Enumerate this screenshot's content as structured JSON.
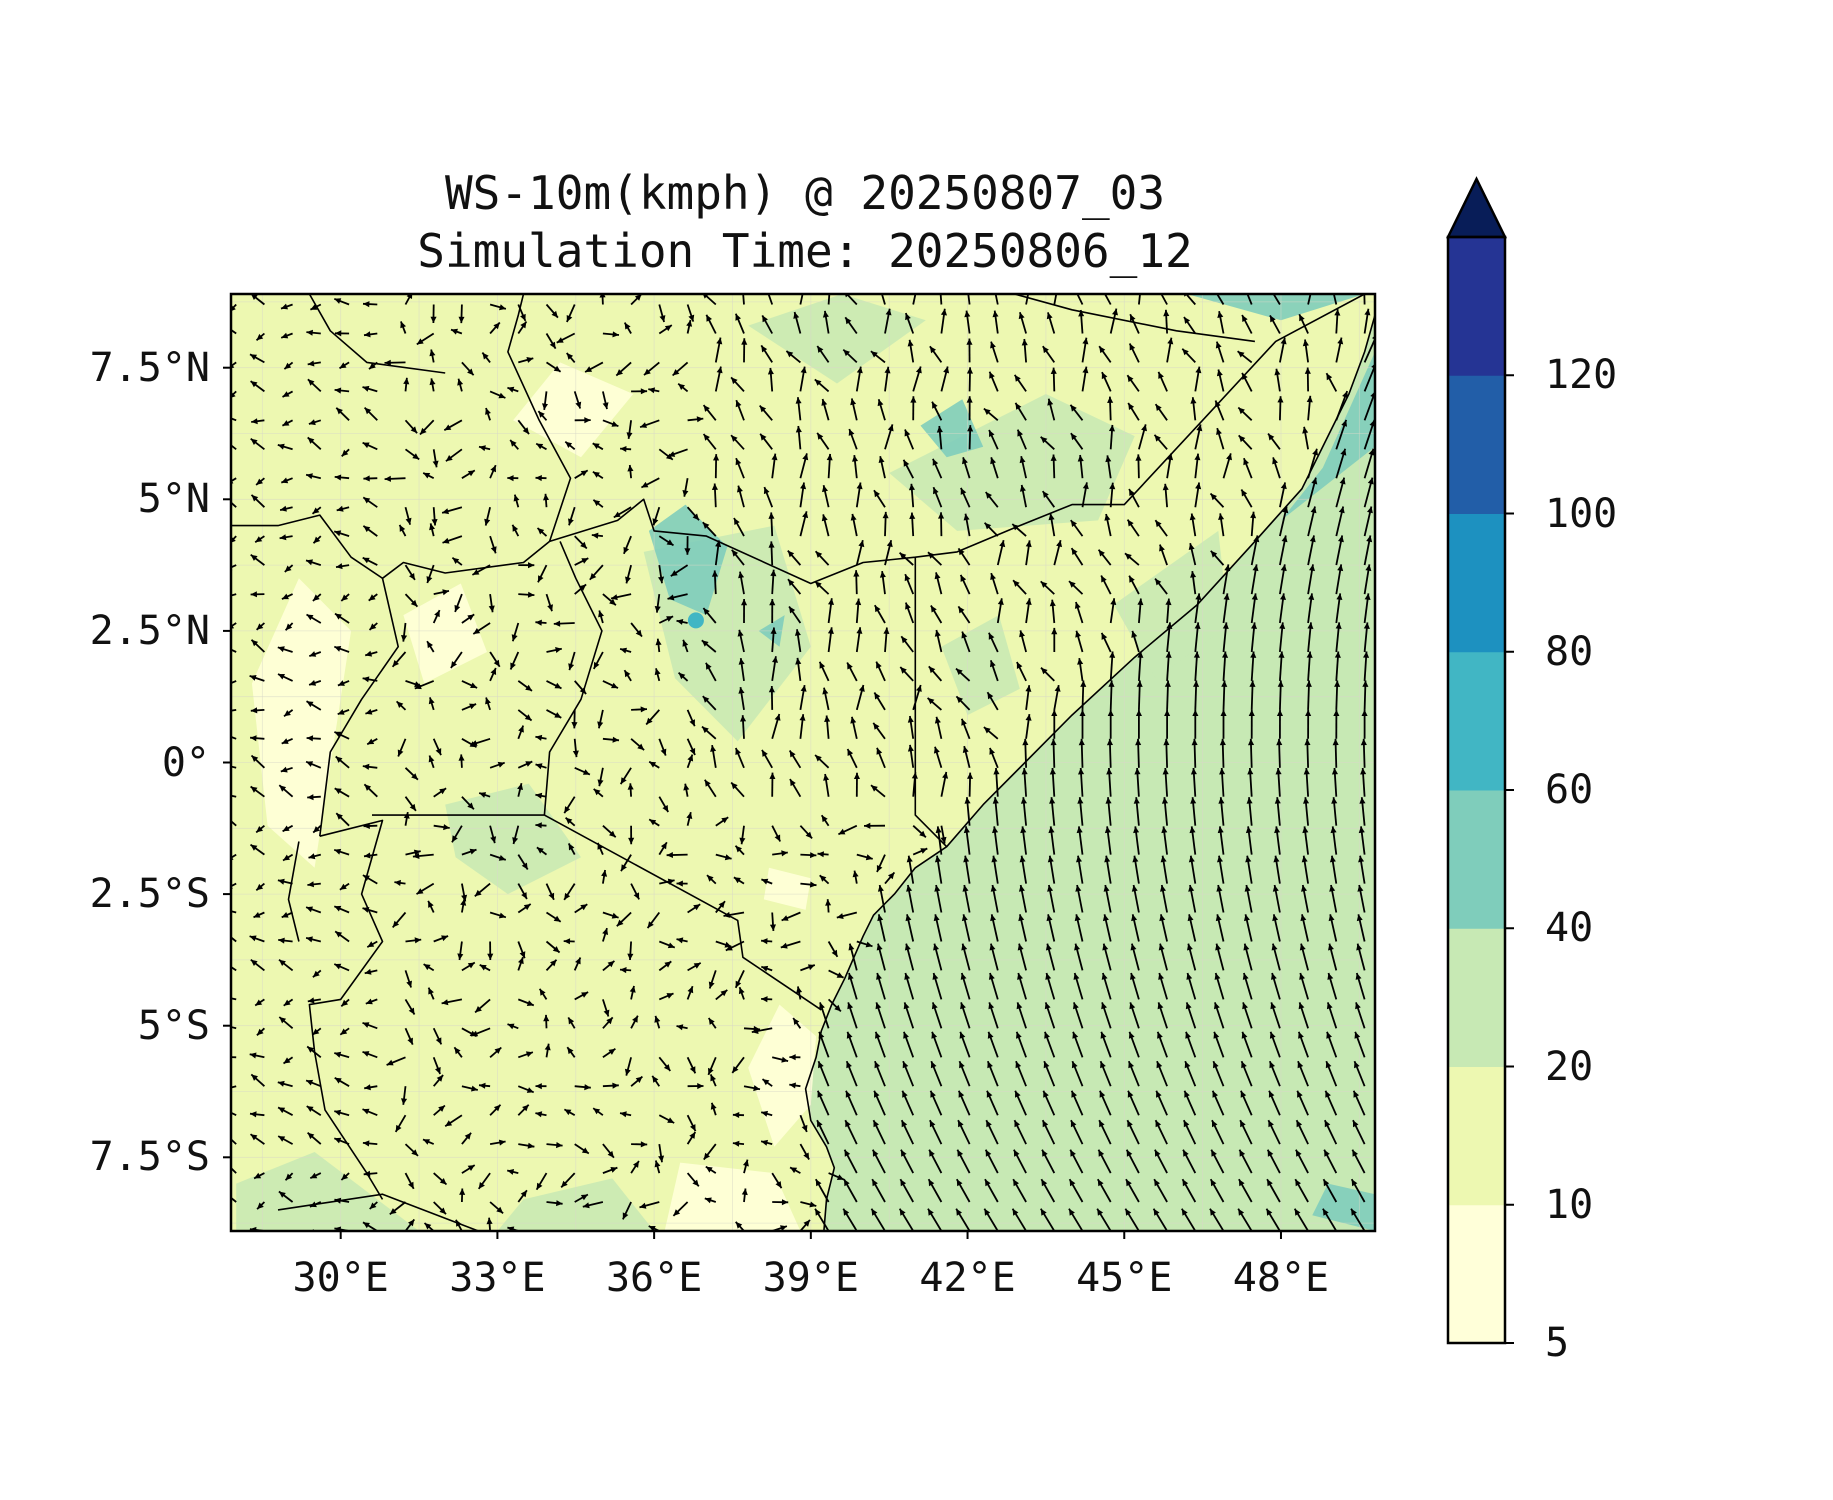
{
  "title": {
    "line1": "WS-10m(kmph) @ 20250807_03",
    "line2": "Simulation Time: 20250806_12"
  },
  "map": {
    "lon_range": [
      27.9,
      49.8
    ],
    "lat_range": [
      -8.9,
      8.9
    ],
    "lon_ticks": [
      {
        "value": 30,
        "label": "30°E"
      },
      {
        "value": 33,
        "label": "33°E"
      },
      {
        "value": 36,
        "label": "36°E"
      },
      {
        "value": 39,
        "label": "39°E"
      },
      {
        "value": 42,
        "label": "42°E"
      },
      {
        "value": 45,
        "label": "45°E"
      },
      {
        "value": 48,
        "label": "48°E"
      }
    ],
    "lat_ticks": [
      {
        "value": 7.5,
        "label": "7.5°N"
      },
      {
        "value": 5,
        "label": "5°N"
      },
      {
        "value": 2.5,
        "label": "2.5°N"
      },
      {
        "value": 0,
        "label": "0°"
      },
      {
        "value": -2.5,
        "label": "2.5°S"
      },
      {
        "value": -5,
        "label": "5°S"
      },
      {
        "value": -7.5,
        "label": "7.5°S"
      }
    ],
    "gridlines": true,
    "vectors": "wind arrows (10m wind direction)",
    "ocean_field_level": 30,
    "land_field_level": 12,
    "colors": {
      "l5": "#ffffd9",
      "l10": "#f4fac0",
      "l20": "#edf8b1",
      "l40": "#c7e9b4",
      "l60": "#7fcdbb",
      "l80": "#41b6c4",
      "l100": "#225ea8",
      "l120": "#253494",
      "extend": "#081d58"
    }
  },
  "colorbar": {
    "levels": [
      5,
      10,
      20,
      40,
      60,
      80,
      100,
      120
    ],
    "labels": [
      "5",
      "10",
      "20",
      "40",
      "60",
      "80",
      "100",
      "120"
    ],
    "colors": [
      "#ffffd9",
      "#edf8b1",
      "#c7e9b4",
      "#7fcdbb",
      "#41b6c4",
      "#1d91c0",
      "#225ea8",
      "#253494"
    ],
    "extend_color": "#081d58",
    "extend": "max"
  }
}
